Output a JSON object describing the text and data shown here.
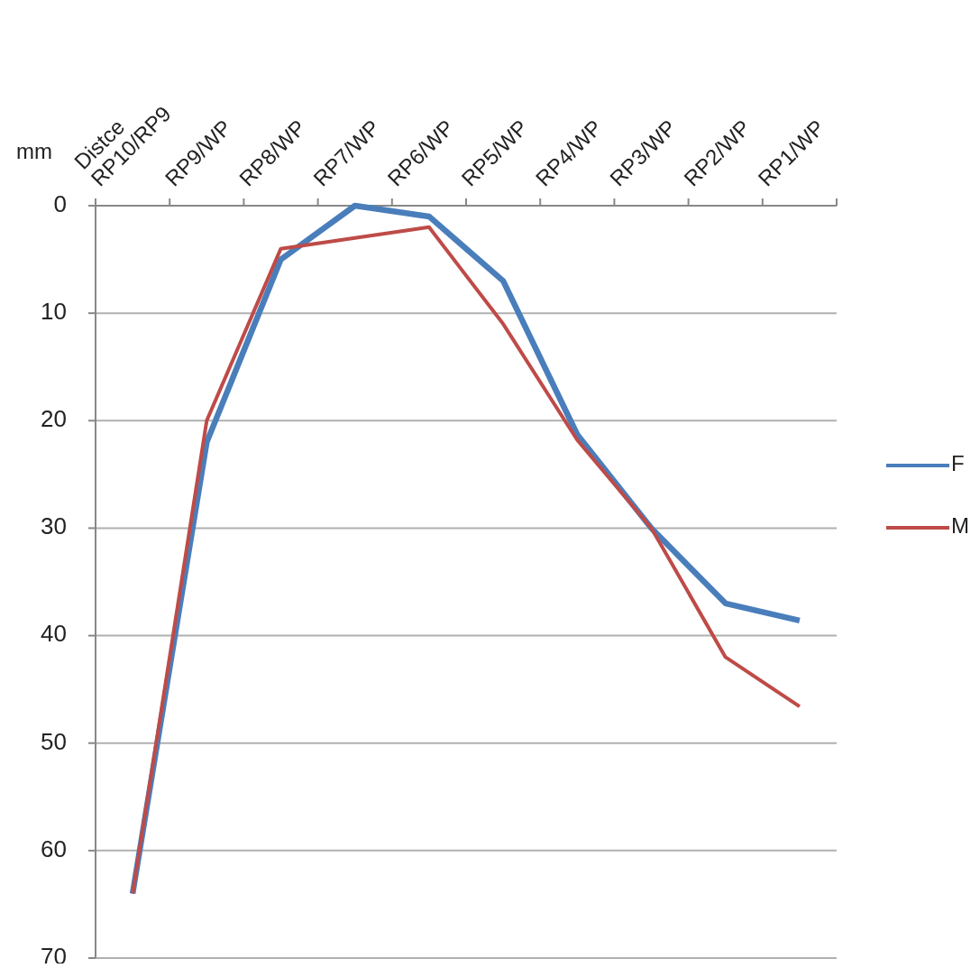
{
  "chart_data": {
    "type": "line",
    "ylabel": "mm",
    "categories": [
      "Distce RP10/RP9",
      "RP9/WP",
      "RP8/WP",
      "RP7/WP",
      "RP6/WP",
      "RP5/WP",
      "RP4/WP",
      "RP3/WP",
      "RP2/WP",
      "RP1/WP"
    ],
    "series": [
      {
        "name": "F",
        "color": "#4a7ebb",
        "values": [
          64,
          22,
          5,
          0,
          1,
          7,
          21.3,
          30,
          37,
          38.6
        ]
      },
      {
        "name": "M",
        "color": "#be4b48",
        "values": [
          64,
          20,
          4,
          3,
          2,
          11,
          21.8,
          30,
          42,
          46.6
        ]
      }
    ],
    "ylim": [
      70,
      0
    ],
    "yticks": [
      0,
      10,
      20,
      30,
      40,
      50,
      60,
      70
    ],
    "grid": "y",
    "legend": "right",
    "marker": "none",
    "line_style": "solid"
  }
}
